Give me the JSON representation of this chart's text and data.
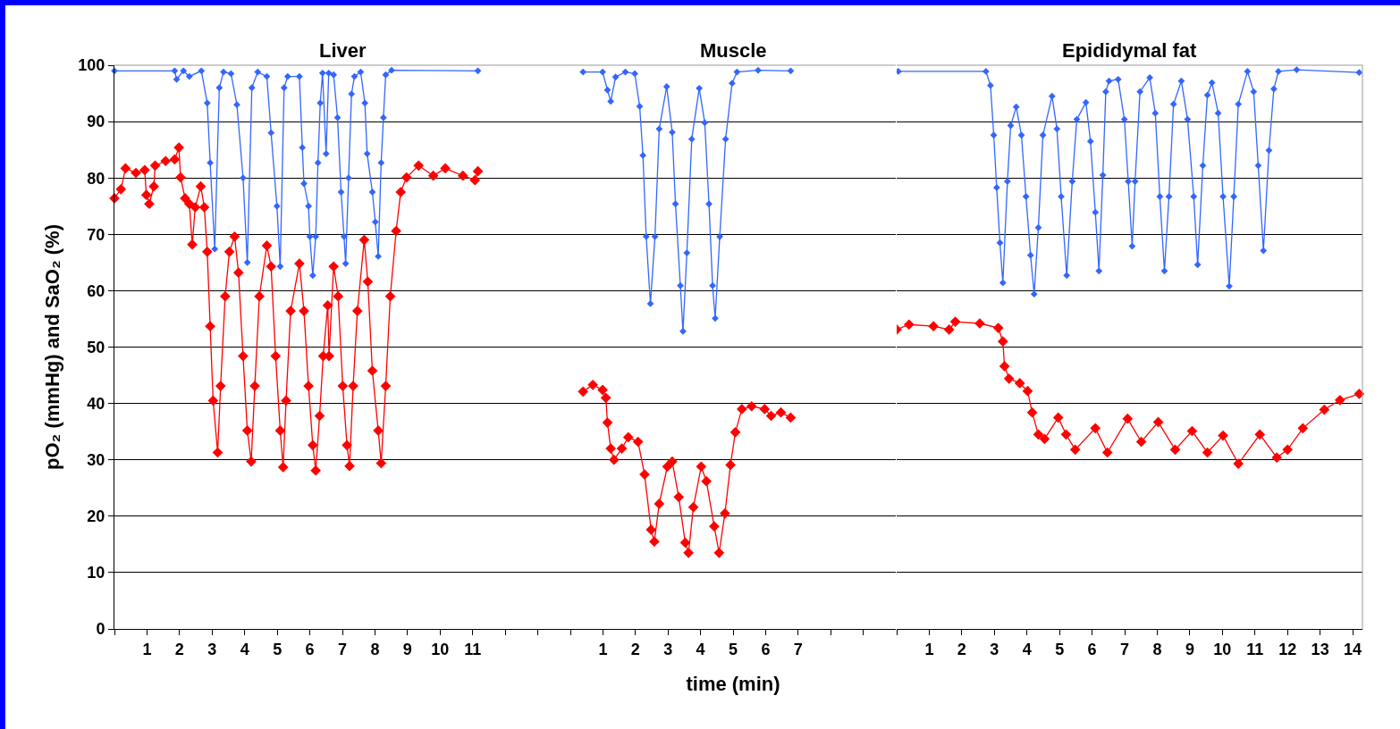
{
  "chart_data": [
    {
      "type": "line",
      "title": "Liver",
      "ylabel": "pO₂ (mmHg) and SaO₂ (%)",
      "series": [
        {
          "color": "#3366ff",
          "x": [
            0,
            1.85,
            1.91,
            2.12,
            2.3,
            2.67,
            2.85,
            2.94,
            3.08,
            3.22,
            3.35,
            3.58,
            3.76,
            3.95,
            4.08,
            4.22,
            4.4,
            4.68,
            4.81,
            4.99,
            5.09,
            5.21,
            5.32,
            5.68,
            5.77,
            5.82,
            5.96,
            6.0,
            6.09,
            6.18,
            6.25,
            6.32,
            6.39,
            6.5,
            6.58,
            6.73,
            6.85,
            6.96,
            7.05,
            7.1,
            7.19,
            7.28,
            7.37,
            7.56,
            7.69,
            7.76,
            7.92,
            8.01,
            8.1,
            8.19,
            8.26,
            8.33,
            8.51,
            11.16
          ],
          "values": [
            99,
            99,
            97.5,
            99,
            98,
            99,
            93.3,
            82.7,
            67.4,
            96,
            98.8,
            98.5,
            93,
            80,
            65,
            96,
            98.8,
            98,
            88,
            75,
            64.3,
            96,
            98,
            98,
            85.4,
            79,
            75,
            69.6,
            62.7,
            69.6,
            82.7,
            93.3,
            98.6,
            84.3,
            98.6,
            98.3,
            90.7,
            77.5,
            69.6,
            64.8,
            80,
            94.9,
            98,
            98.8,
            93.3,
            84.3,
            77.5,
            72.2,
            66.1,
            82.7,
            90.7,
            98.3,
            99.1,
            99
          ]
        },
        {
          "color": "#ff0000",
          "x": [
            0,
            0.2,
            0.34,
            0.66,
            0.93,
            0.98,
            1.07,
            1.21,
            1.25,
            1.57,
            1.85,
            1.98,
            2.03,
            2.17,
            2.3,
            2.39,
            2.48,
            2.65,
            2.76,
            2.85,
            2.94,
            3.03,
            3.17,
            3.26,
            3.4,
            3.53,
            3.69,
            3.81,
            3.95,
            4.08,
            4.2,
            4.31,
            4.45,
            4.68,
            4.81,
            4.95,
            5.09,
            5.18,
            5.27,
            5.41,
            5.68,
            5.82,
            5.96,
            6.09,
            6.18,
            6.3,
            6.41,
            6.55,
            6.59,
            6.73,
            6.87,
            7.01,
            7.14,
            7.22,
            7.33,
            7.46,
            7.67,
            7.78,
            7.92,
            8.1,
            8.19,
            8.33,
            8.47,
            8.65,
            8.79,
            8.97,
            9.34,
            9.79,
            10.16,
            10.7,
            11.07,
            11.16
          ],
          "values": [
            76.4,
            78,
            81.7,
            80.9,
            81.4,
            77,
            75.4,
            78.5,
            82.2,
            83,
            83.3,
            85.4,
            80.1,
            76.4,
            75.4,
            68.2,
            74.8,
            78.5,
            74.8,
            66.9,
            53.7,
            40.5,
            31.3,
            43.1,
            59,
            66.9,
            69.6,
            63.2,
            48.4,
            35.2,
            29.7,
            43.1,
            59,
            68,
            64.3,
            48.4,
            35.2,
            28.7,
            40.5,
            56.4,
            64.8,
            56.4,
            43.1,
            32.6,
            28.1,
            37.8,
            48.4,
            57.4,
            48.4,
            64.3,
            59,
            43.1,
            32.6,
            28.9,
            43.1,
            56.4,
            69,
            61.6,
            45.8,
            35.2,
            29.4,
            43.1,
            59,
            70.6,
            77.5,
            80.1,
            82.2,
            80.4,
            81.7,
            80.4,
            79.6,
            81.2
          ]
        }
      ],
      "xlim": [
        0,
        14
      ],
      "xticks": [
        {
          "value": 0,
          "label": null
        },
        1,
        2,
        3,
        4,
        5,
        6,
        7,
        8,
        9,
        10,
        11,
        {
          "value": 12,
          "label": null
        },
        {
          "value": 13,
          "label": null
        }
      ],
      "ylim": [
        0,
        100
      ],
      "yticks": [
        0,
        10,
        20,
        30,
        40,
        50,
        60,
        70,
        80,
        90,
        100
      ],
      "grid": "y",
      "marker": "diamond",
      "line_style": "solid"
    },
    {
      "type": "line",
      "title": "Muscle",
      "xlabel": "time (min)",
      "series": [
        {
          "color": "#3366ff",
          "x": [
            0.39,
            0.99,
            1.14,
            1.24,
            1.39,
            1.69,
            1.98,
            2.13,
            2.23,
            2.33,
            2.46,
            2.6,
            2.73,
            2.96,
            3.13,
            3.23,
            3.38,
            3.46,
            3.58,
            3.73,
            3.96,
            4.13,
            4.26,
            4.37,
            4.45,
            4.59,
            4.77,
            4.97,
            5.12,
            5.77,
            6.77
          ],
          "values": [
            98.8,
            98.8,
            95.6,
            93.6,
            97.9,
            98.8,
            98.5,
            92.7,
            84,
            69.6,
            57.7,
            69.6,
            88.7,
            96.2,
            88.1,
            75.4,
            60.9,
            52.8,
            66.7,
            86.9,
            95.9,
            89.8,
            75.4,
            60.9,
            55.1,
            69.6,
            86.9,
            96.8,
            98.8,
            99.1,
            99
          ]
        },
        {
          "color": "#ff0000",
          "x": [
            0.39,
            0.69,
            0.99,
            1.09,
            1.14,
            1.24,
            1.34,
            1.58,
            1.78,
            2.08,
            2.28,
            2.48,
            2.58,
            2.73,
            2.98,
            3.13,
            3.33,
            3.53,
            3.63,
            3.78,
            4.02,
            4.18,
            4.42,
            4.57,
            4.75,
            4.92,
            5.07,
            5.27,
            5.57,
            5.97,
            6.17,
            6.47,
            6.77
          ],
          "values": [
            42.1,
            43.3,
            42.4,
            41,
            36.6,
            32,
            30,
            32,
            34,
            33.2,
            27.4,
            17.6,
            15.5,
            22.2,
            28.8,
            29.7,
            23.4,
            15.3,
            13.5,
            21.6,
            28.8,
            26.2,
            18.2,
            13.5,
            20.5,
            29.1,
            34.9,
            39,
            39.5,
            39,
            37.8,
            38.4,
            37.5
          ]
        }
      ],
      "xlim": [
        0,
        10
      ],
      "xticks": [
        {
          "value": 0,
          "label": null
        },
        1,
        2,
        3,
        4,
        5,
        6,
        7,
        {
          "value": 8,
          "label": null
        },
        {
          "value": 9,
          "label": null
        }
      ],
      "ylim": [
        0,
        100
      ],
      "yticks": [
        0,
        10,
        20,
        30,
        40,
        50,
        60,
        70,
        80,
        90,
        100
      ],
      "grid": "y",
      "marker": "diamond",
      "line_style": "solid",
      "tick_labels": "x"
    },
    {
      "type": "line",
      "title": "Epididymal fat",
      "series": [
        {
          "color": "#3366ff",
          "x": [
            0.05,
            2.74,
            2.88,
            2.98,
            3.07,
            3.17,
            3.26,
            3.4,
            3.5,
            3.67,
            3.83,
            3.97,
            4.11,
            4.22,
            4.35,
            4.49,
            4.77,
            4.92,
            5.05,
            5.22,
            5.39,
            5.53,
            5.81,
            5.95,
            6.1,
            6.21,
            6.33,
            6.42,
            6.52,
            6.8,
            6.99,
            7.11,
            7.23,
            7.32,
            7.47,
            7.77,
            7.94,
            8.08,
            8.22,
            8.36,
            8.5,
            8.74,
            8.93,
            9.12,
            9.24,
            9.4,
            9.54,
            9.68,
            9.87,
            10.02,
            10.21,
            10.35,
            10.49,
            10.77,
            10.96,
            11.1,
            11.26,
            11.43,
            11.58,
            11.72,
            12.28,
            14.2
          ],
          "values": [
            98.9,
            98.9,
            96.4,
            87.6,
            78.3,
            68.5,
            61.4,
            79.4,
            89.3,
            92.6,
            87.6,
            76.7,
            66.3,
            59.4,
            71.2,
            87.6,
            94.5,
            88.7,
            76.7,
            62.7,
            79.4,
            90.4,
            93.4,
            86.5,
            73.9,
            63.5,
            80.5,
            95.3,
            97.2,
            97.5,
            90.4,
            79.4,
            67.9,
            79.4,
            95.3,
            97.8,
            91.5,
            76.7,
            63.5,
            76.7,
            93.1,
            97.2,
            90.4,
            76.7,
            64.6,
            82.2,
            94.7,
            96.9,
            91.5,
            76.7,
            60.8,
            76.7,
            93.1,
            98.9,
            95.3,
            82.2,
            67.1,
            84.9,
            95.8,
            98.9,
            99.2,
            98.7
          ]
        },
        {
          "color": "#ff0000",
          "x": [
            0,
            0.38,
            1.13,
            1.61,
            1.8,
            2.55,
            3.12,
            3.26,
            3.31,
            3.45,
            3.78,
            4.02,
            4.16,
            4.35,
            4.54,
            4.96,
            5.2,
            5.48,
            6.1,
            6.47,
            7.09,
            7.51,
            8.03,
            8.55,
            9.07,
            9.54,
            10.02,
            10.49,
            11.15,
            11.67,
            12,
            12.47,
            13.13,
            13.61,
            14.2
          ],
          "values": [
            53.1,
            54,
            53.7,
            53.1,
            54.5,
            54.2,
            53.4,
            51,
            46.6,
            44.4,
            43.6,
            42.2,
            38.4,
            34.5,
            33.7,
            37.5,
            34.5,
            31.8,
            35.6,
            31.3,
            37.3,
            33.2,
            36.7,
            31.8,
            35.1,
            31.3,
            34.3,
            29.3,
            34.5,
            30.4,
            31.8,
            35.6,
            38.9,
            40.6,
            41.7
          ]
        }
      ],
      "xlim": [
        0,
        14.3
      ],
      "xticks": [
        {
          "value": 0,
          "label": null
        },
        1,
        2,
        3,
        4,
        5,
        6,
        7,
        8,
        9,
        10,
        11,
        12,
        13,
        14
      ],
      "ylim": [
        0,
        100
      ],
      "yticks": [
        0,
        10,
        20,
        30,
        40,
        50,
        60,
        70,
        80,
        90,
        100
      ],
      "grid": "y",
      "marker": "diamond",
      "line_style": "solid",
      "tick_labels": "x"
    }
  ]
}
